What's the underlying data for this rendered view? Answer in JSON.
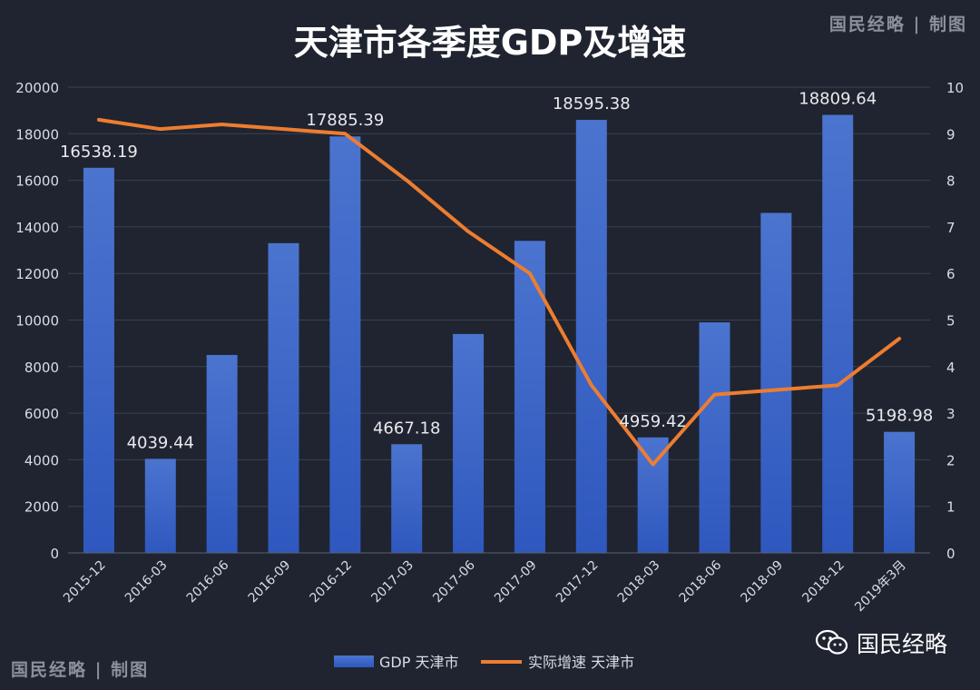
{
  "watermark_top": "国民经略 | 制图",
  "watermark_bottom": "国民经略 | 制图",
  "brand": "国民经略",
  "colors": {
    "background": "#1f2430",
    "bar_top": "#4b74cf",
    "bar_bottom": "#2f58bf",
    "line": "#ed7d31",
    "text": "#d9dde3",
    "grid": "#3b4150"
  },
  "chart_data": {
    "type": "bar",
    "title": "天津市各季度GDP及增速",
    "categories": [
      "2015-12",
      "2016-03",
      "2016-06",
      "2016-09",
      "2016-12",
      "2017-03",
      "2017-06",
      "2017-09",
      "2017-12",
      "2018-03",
      "2018-06",
      "2018-09",
      "2018-12",
      "2019年3月"
    ],
    "series": [
      {
        "name": "GDP 天津市",
        "type": "bar",
        "axis": "left",
        "values": [
          16538.19,
          4039.44,
          8500,
          13300,
          17885.39,
          4667.18,
          9400,
          13400,
          18595.38,
          4959.42,
          9900,
          14600,
          18809.64,
          5198.98
        ],
        "data_labels": [
          "16538.19",
          "4039.44",
          "",
          "",
          "17885.39",
          "4667.18",
          "",
          "",
          "18595.38",
          "4959.42",
          "",
          "",
          "18809.64",
          "5198.98"
        ]
      },
      {
        "name": "实际增速 天津市",
        "type": "line",
        "axis": "right",
        "values": [
          9.3,
          9.1,
          9.2,
          9.1,
          9.0,
          8.0,
          6.9,
          6.0,
          3.6,
          1.9,
          3.4,
          3.5,
          3.6,
          4.6
        ]
      }
    ],
    "y_left": {
      "min": 0,
      "max": 20000,
      "ticks": [
        "0",
        "2000",
        "4000",
        "6000",
        "8000",
        "10000",
        "12000",
        "14000",
        "16000",
        "18000",
        "20000"
      ]
    },
    "y_right": {
      "min": 0,
      "max": 10,
      "ticks": [
        "0",
        "1",
        "2",
        "3",
        "4",
        "5",
        "6",
        "7",
        "8",
        "9",
        "10"
      ]
    },
    "grid": true,
    "legend_position": "bottom"
  }
}
